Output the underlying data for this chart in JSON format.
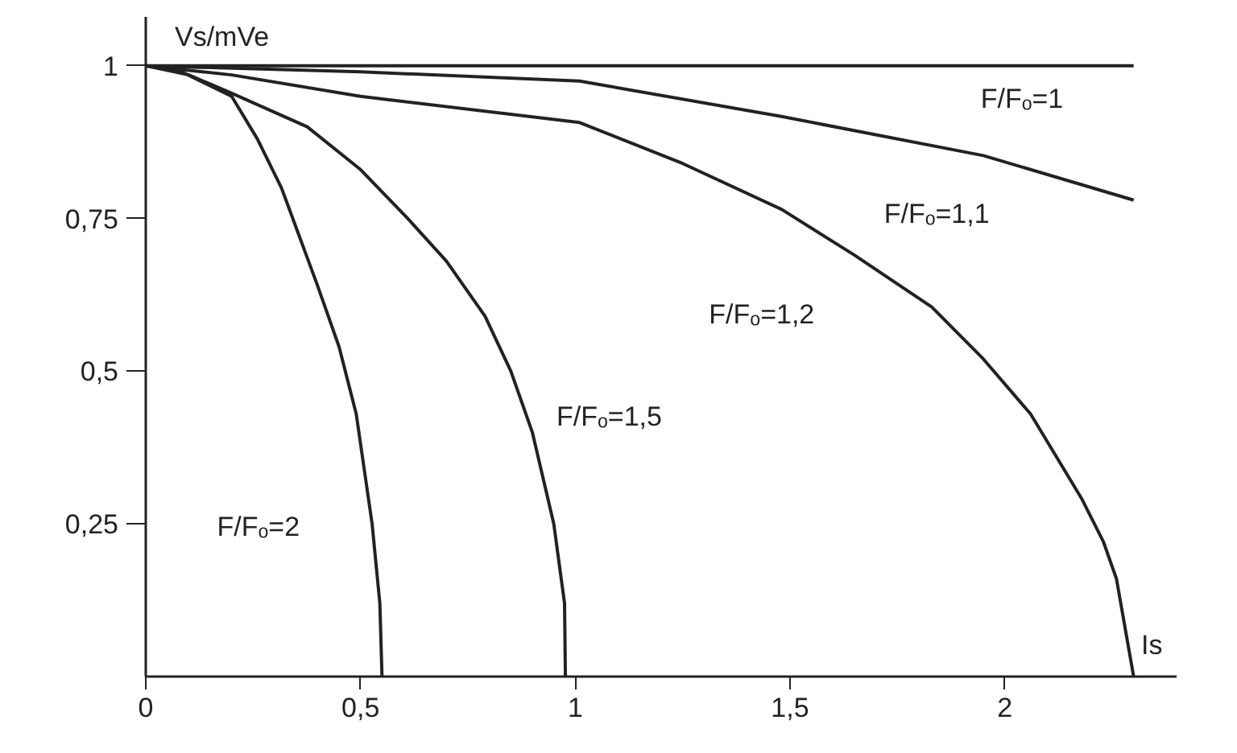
{
  "chart_data": {
    "type": "line",
    "xlabel": "Is",
    "ylabel": "Vs/mVe",
    "xlim": [
      0,
      2.4
    ],
    "ylim": [
      0,
      1.08
    ],
    "xticks": [
      0,
      {
        "value": 0.5,
        "label": "0,5"
      },
      1,
      {
        "value": 1.5,
        "label": "1,5"
      },
      2
    ],
    "yticks": [
      {
        "value": 0.25,
        "label": "0,25"
      },
      {
        "value": 0.5,
        "label": "0,5"
      },
      {
        "value": 0.75,
        "label": "0,75"
      },
      1
    ],
    "grid": false,
    "marker": "none",
    "line_style": "solid",
    "series": [
      {
        "name": "F/Fₒ=1",
        "color": "#222222",
        "x": [
          0,
          2.3
        ],
        "values": [
          1,
          1
        ]
      },
      {
        "name": "F/Fₒ=1,1",
        "color": "#222222",
        "x": [
          0,
          0.5,
          1.01,
          1.48,
          1.95,
          2.3
        ],
        "values": [
          1,
          0.99,
          0.975,
          0.917,
          0.853,
          0.78
        ]
      },
      {
        "name": "F/Fₒ=1,2",
        "color": "#222222",
        "x": [
          0,
          0.2,
          0.5,
          1.01,
          1.25,
          1.48,
          1.65,
          1.83,
          1.95,
          2.06,
          2.18,
          2.23,
          2.26,
          2.3
        ],
        "values": [
          1,
          0.985,
          0.95,
          0.907,
          0.84,
          0.765,
          0.69,
          0.605,
          0.52,
          0.43,
          0.29,
          0.22,
          0.16,
          0
        ]
      },
      {
        "name": "F/Fₒ=1,5",
        "color": "#222222",
        "x": [
          0,
          0.1,
          0.2,
          0.376,
          0.5,
          0.61,
          0.7,
          0.79,
          0.85,
          0.9,
          0.95,
          0.975,
          0.977
        ],
        "values": [
          1,
          0.985,
          0.955,
          0.9,
          0.83,
          0.75,
          0.68,
          0.59,
          0.5,
          0.4,
          0.25,
          0.12,
          0
        ]
      },
      {
        "name": "F/Fₒ=2",
        "color": "#222222",
        "x": [
          0,
          0.084,
          0.2,
          0.26,
          0.316,
          0.4,
          0.45,
          0.49,
          0.527,
          0.545,
          0.55
        ],
        "values": [
          1,
          0.99,
          0.95,
          0.88,
          0.8,
          0.64,
          0.54,
          0.43,
          0.25,
          0.12,
          0
        ]
      }
    ]
  }
}
